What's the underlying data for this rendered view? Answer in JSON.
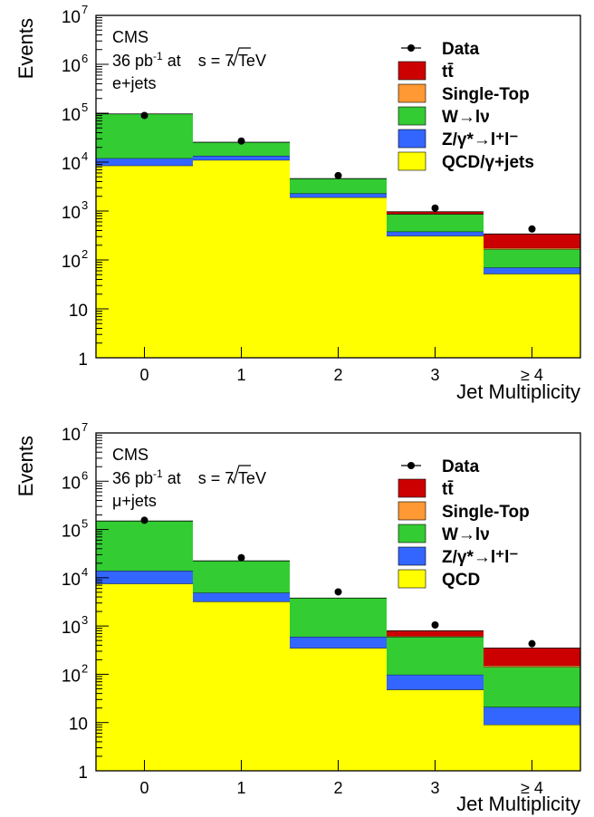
{
  "colors": {
    "ttbar": "#cc0000",
    "single_top": "#ff9933",
    "w": "#33cc33",
    "z": "#3366ff",
    "qcd": "#ffff00",
    "data": "#000000"
  },
  "chart_data": [
    {
      "type": "bar",
      "stacked": true,
      "yscale": "log",
      "ylim": [
        1,
        10000000
      ],
      "ylabel": "Events",
      "xlabel": "Jet Multiplicity",
      "categories": [
        "0",
        "1",
        "2",
        "3",
        "≥ 4"
      ],
      "y_ticks": [
        {
          "base": "1",
          "exp": ""
        },
        {
          "base": "10",
          "exp": ""
        },
        {
          "base": "10",
          "exp": "2"
        },
        {
          "base": "10",
          "exp": "3"
        },
        {
          "base": "10",
          "exp": "4"
        },
        {
          "base": "10",
          "exp": "5"
        },
        {
          "base": "10",
          "exp": "6"
        },
        {
          "base": "10",
          "exp": "7"
        }
      ],
      "annotation": {
        "experiment": "CMS",
        "lumi_prefix": "36 pb",
        "lumi_exp": "-1",
        "lumi_mid": " at ",
        "sqrt_s": "s",
        "lumi_suffix": " = 7 TeV",
        "channel": "e+jets"
      },
      "series": [
        {
          "name": "QCD/γ+jets",
          "color_key": "qcd",
          "values": [
            8500,
            11000,
            1900,
            310,
            52
          ]
        },
        {
          "name": "Z/γ*→l⁺l⁻",
          "color_key": "z",
          "values": [
            3500,
            2500,
            400,
            70,
            18
          ]
        },
        {
          "name": "W→lν",
          "color_key": "w",
          "values": [
            85000,
            12000,
            2300,
            480,
            95
          ]
        },
        {
          "name": "Single-Top",
          "color_key": "single_top",
          "values": [
            0,
            0,
            0,
            20,
            10
          ]
        },
        {
          "name": "tt̄",
          "color_key": "ttbar",
          "values": [
            0,
            0,
            0,
            90,
            165
          ]
        }
      ],
      "data_points": [
        90000,
        27000,
        5300,
        1150,
        430
      ],
      "legend": {
        "position": "top-right",
        "data_label": "Data"
      }
    },
    {
      "type": "bar",
      "stacked": true,
      "yscale": "log",
      "ylim": [
        1,
        10000000
      ],
      "ylabel": "Events",
      "xlabel": "Jet Multiplicity",
      "categories": [
        "0",
        "1",
        "2",
        "3",
        "≥ 4"
      ],
      "y_ticks": [
        {
          "base": "1",
          "exp": ""
        },
        {
          "base": "10",
          "exp": ""
        },
        {
          "base": "10",
          "exp": "2"
        },
        {
          "base": "10",
          "exp": "3"
        },
        {
          "base": "10",
          "exp": "4"
        },
        {
          "base": "10",
          "exp": "5"
        },
        {
          "base": "10",
          "exp": "6"
        },
        {
          "base": "10",
          "exp": "7"
        }
      ],
      "annotation": {
        "experiment": "CMS",
        "lumi_prefix": "36 pb",
        "lumi_exp": "-1",
        "lumi_mid": " at ",
        "sqrt_s": "s",
        "lumi_suffix": " = 7 TeV",
        "channel": "μ+jets"
      },
      "series": [
        {
          "name": "QCD",
          "color_key": "qcd",
          "values": [
            7500,
            3200,
            350,
            48,
            9
          ]
        },
        {
          "name": "Z/γ*→l⁺l⁻",
          "color_key": "z",
          "values": [
            6500,
            1700,
            250,
            50,
            12
          ]
        },
        {
          "name": "W→lν",
          "color_key": "w",
          "values": [
            136000,
            17500,
            3200,
            500,
            120
          ]
        },
        {
          "name": "Single-Top",
          "color_key": "single_top",
          "values": [
            0,
            0,
            0,
            20,
            10
          ]
        },
        {
          "name": "tt̄",
          "color_key": "ttbar",
          "values": [
            0,
            0,
            0,
            180,
            200
          ]
        }
      ],
      "data_points": [
        155000,
        26000,
        5100,
        1050,
        430
      ],
      "legend": {
        "position": "top-right",
        "data_label": "Data"
      }
    }
  ]
}
